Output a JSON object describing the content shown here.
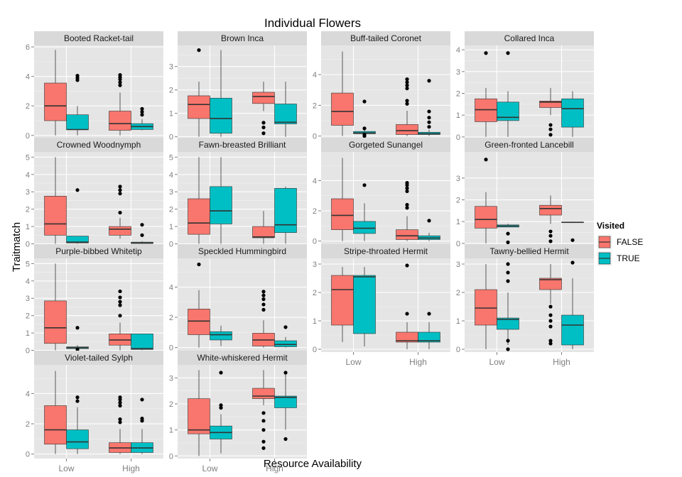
{
  "chart_data": {
    "type": "boxplot",
    "title": "Individual Flowers",
    "xlabel": "Resource Availability",
    "ylabel": "Traitmatch",
    "categories": [
      "Low",
      "High"
    ],
    "legend": {
      "title": "Visited",
      "placement": "right",
      "entries": [
        {
          "label": "FALSE",
          "color": "#F8766D"
        },
        {
          "label": "TRUE",
          "color": "#00BFC4"
        }
      ]
    },
    "grid": true,
    "panels": [
      {
        "name": "Booted Racket-tail",
        "ylim": [
          -0.25,
          6.1
        ],
        "yticks": [
          0,
          2,
          4,
          6
        ],
        "boxes": [
          {
            "x": "Low",
            "group": "FALSE",
            "lw": 0,
            "q1": 1.0,
            "med": 2.0,
            "q3": 3.55,
            "uw": 5.8,
            "out": []
          },
          {
            "x": "Low",
            "group": "TRUE",
            "lw": 0,
            "q1": 0.4,
            "med": 0.4,
            "q3": 1.4,
            "uw": 2.0,
            "out": [
              3.75,
              3.9,
              4.05
            ]
          },
          {
            "x": "High",
            "group": "FALSE",
            "lw": 0,
            "q1": 0.35,
            "med": 0.8,
            "q3": 1.65,
            "uw": 2.9,
            "out": [
              3.4,
              3.6,
              3.8,
              3.95,
              4.1
            ]
          },
          {
            "x": "High",
            "group": "TRUE",
            "lw": 0.35,
            "q1": 0.4,
            "med": 0.6,
            "q3": 0.8,
            "uw": 1.1,
            "out": [
              1.4,
              1.6,
              1.8
            ]
          }
        ]
      },
      {
        "name": "Brown Inca",
        "ylim": [
          -0.1,
          3.9
        ],
        "yticks": [
          0,
          1,
          2,
          3
        ],
        "boxes": [
          {
            "x": "Low",
            "group": "FALSE",
            "lw": 0,
            "q1": 0.78,
            "med": 1.38,
            "q3": 1.75,
            "uw": 2.35,
            "out": [
              3.7
            ]
          },
          {
            "x": "Low",
            "group": "TRUE",
            "lw": 0,
            "q1": 0.15,
            "med": 0.78,
            "q3": 1.65,
            "uw": 3.7,
            "out": []
          },
          {
            "x": "High",
            "group": "FALSE",
            "lw": 1.1,
            "q1": 1.42,
            "med": 1.72,
            "q3": 1.9,
            "uw": 2.35,
            "out": [
              0.15,
              0.4,
              0.6
            ]
          },
          {
            "x": "High",
            "group": "TRUE",
            "lw": 0,
            "q1": 0.55,
            "med": 0.62,
            "q3": 1.4,
            "uw": 2.35,
            "out": []
          }
        ]
      },
      {
        "name": "Buff-tailed Coronet",
        "ylim": [
          -0.2,
          5.9
        ],
        "yticks": [
          0,
          2,
          4
        ],
        "boxes": [
          {
            "x": "Low",
            "group": "FALSE",
            "lw": 0,
            "q1": 0.7,
            "med": 1.6,
            "q3": 2.8,
            "uw": 5.5,
            "out": []
          },
          {
            "x": "Low",
            "group": "TRUE",
            "lw": 0.05,
            "q1": 0.15,
            "med": 0.2,
            "q3": 0.3,
            "uw": 0.4,
            "out": [
              0.0,
              0.1,
              0.5,
              2.25
            ]
          },
          {
            "x": "High",
            "group": "FALSE",
            "lw": 0,
            "q1": 0.1,
            "med": 0.35,
            "q3": 0.75,
            "uw": 1.65,
            "out": [
              2.1,
              2.3,
              3.1,
              3.3,
              3.5,
              3.7
            ]
          },
          {
            "x": "High",
            "group": "TRUE",
            "lw": 0.0,
            "q1": 0.1,
            "med": 0.15,
            "q3": 0.25,
            "uw": 0.4,
            "out": [
              0.6,
              0.9,
              1.2,
              1.6,
              3.6
            ]
          }
        ]
      },
      {
        "name": "Collared Inca",
        "ylim": [
          -0.1,
          4.2
        ],
        "yticks": [
          0,
          1,
          2,
          3,
          4
        ],
        "boxes": [
          {
            "x": "Low",
            "group": "FALSE",
            "lw": 0,
            "q1": 0.7,
            "med": 1.25,
            "q3": 1.75,
            "uw": 2.25,
            "out": [
              3.85
            ]
          },
          {
            "x": "Low",
            "group": "TRUE",
            "lw": 0,
            "q1": 0.75,
            "med": 0.9,
            "q3": 1.6,
            "uw": 2.1,
            "out": [
              3.85
            ]
          },
          {
            "x": "High",
            "group": "FALSE",
            "lw": 1.0,
            "q1": 1.35,
            "med": 1.6,
            "q3": 1.65,
            "uw": 2.25,
            "out": [
              0.1,
              0.35,
              0.55
            ]
          },
          {
            "x": "High",
            "group": "TRUE",
            "lw": 0,
            "q1": 0.45,
            "med": 1.3,
            "q3": 1.75,
            "uw": 2.1,
            "out": []
          }
        ]
      },
      {
        "name": "Crowned Woodnymph",
        "ylim": [
          -0.1,
          5.3
        ],
        "yticks": [
          0,
          1,
          2,
          3,
          4,
          5
        ],
        "boxes": [
          {
            "x": "Low",
            "group": "FALSE",
            "lw": 0,
            "q1": 0.5,
            "med": 1.15,
            "q3": 2.75,
            "uw": 5.0,
            "out": []
          },
          {
            "x": "Low",
            "group": "TRUE",
            "lw": 0,
            "q1": 0.05,
            "med": 0.1,
            "q3": 0.45,
            "uw": 0.45,
            "out": [
              3.1
            ]
          },
          {
            "x": "High",
            "group": "FALSE",
            "lw": 0.3,
            "q1": 0.5,
            "med": 0.85,
            "q3": 1.0,
            "uw": 1.5,
            "out": [
              1.8,
              2.9,
              3.1,
              3.3
            ]
          },
          {
            "x": "High",
            "group": "TRUE",
            "lw": 0,
            "q1": 0.02,
            "med": 0.05,
            "q3": 0.1,
            "uw": 0.15,
            "out": [
              0.5,
              1.1
            ]
          }
        ]
      },
      {
        "name": "Fawn-breasted Brilliant",
        "ylim": [
          -0.1,
          5.3
        ],
        "yticks": [
          0,
          1,
          2,
          3,
          4,
          5
        ],
        "boxes": [
          {
            "x": "Low",
            "group": "FALSE",
            "lw": 0,
            "q1": 0.55,
            "med": 1.2,
            "q3": 2.6,
            "uw": 5.0,
            "out": []
          },
          {
            "x": "Low",
            "group": "TRUE",
            "lw": 0,
            "q1": 1.15,
            "med": 1.9,
            "q3": 3.3,
            "uw": 5.0,
            "out": []
          },
          {
            "x": "High",
            "group": "FALSE",
            "lw": 0,
            "q1": 0.35,
            "med": 0.4,
            "q3": 1.0,
            "uw": 1.9,
            "out": []
          },
          {
            "x": "High",
            "group": "TRUE",
            "lw": 0,
            "q1": 0.65,
            "med": 1.1,
            "q3": 3.2,
            "uw": 3.3,
            "out": []
          }
        ]
      },
      {
        "name": "Gorgeted Sunangel",
        "ylim": [
          -0.3,
          5.9
        ],
        "yticks": [
          0,
          2,
          4
        ],
        "boxes": [
          {
            "x": "Low",
            "group": "FALSE",
            "lw": 0,
            "q1": 0.75,
            "med": 1.7,
            "q3": 2.8,
            "uw": 5.5,
            "out": []
          },
          {
            "x": "Low",
            "group": "TRUE",
            "lw": 0,
            "q1": 0.5,
            "med": 0.85,
            "q3": 1.3,
            "uw": 2.5,
            "out": [
              3.7
            ]
          },
          {
            "x": "High",
            "group": "FALSE",
            "lw": 0,
            "q1": 0.1,
            "med": 0.35,
            "q3": 0.75,
            "uw": 1.65,
            "out": [
              2.2,
              2.4,
              3.3,
              3.5,
              3.7,
              3.85
            ]
          },
          {
            "x": "High",
            "group": "TRUE",
            "lw": 0,
            "q1": 0.1,
            "med": 0.2,
            "q3": 0.35,
            "uw": 0.55,
            "out": [
              1.35
            ]
          }
        ]
      },
      {
        "name": "Green-fronted Lancebill",
        "ylim": [
          -0.1,
          4.2
        ],
        "yticks": [
          0,
          1,
          2,
          3
        ],
        "boxes": [
          {
            "x": "Low",
            "group": "FALSE",
            "lw": 0,
            "q1": 0.7,
            "med": 1.1,
            "q3": 1.7,
            "uw": 2.35,
            "out": [
              3.85
            ]
          },
          {
            "x": "Low",
            "group": "TRUE",
            "lw": 0.75,
            "q1": 0.75,
            "med": 0.8,
            "q3": 0.85,
            "uw": 0.9,
            "out": [
              0.05,
              0.45
            ]
          },
          {
            "x": "High",
            "group": "FALSE",
            "lw": 0.9,
            "q1": 1.3,
            "med": 1.6,
            "q3": 1.75,
            "uw": 2.2,
            "out": [
              0.1,
              0.35,
              0.55
            ]
          },
          {
            "x": "High",
            "group": "TRUE",
            "lw": 0.95,
            "q1": 0.95,
            "med": 0.97,
            "q3": 0.98,
            "uw": 1.0,
            "out": [
              0.15
            ]
          }
        ]
      },
      {
        "name": "Purple-bibbed Whitetip",
        "ylim": [
          -0.1,
          5.3
        ],
        "yticks": [
          0,
          1,
          2,
          3,
          4,
          5
        ],
        "boxes": [
          {
            "x": "Low",
            "group": "FALSE",
            "lw": 0,
            "q1": 0.4,
            "med": 1.3,
            "q3": 2.85,
            "uw": 5.0,
            "out": []
          },
          {
            "x": "Low",
            "group": "TRUE",
            "lw": 0.05,
            "q1": 0.1,
            "med": 0.15,
            "q3": 0.2,
            "uw": 0.3,
            "out": [
              0.05,
              1.3
            ]
          },
          {
            "x": "High",
            "group": "FALSE",
            "lw": 0,
            "q1": 0.3,
            "med": 0.6,
            "q3": 0.95,
            "uw": 1.6,
            "out": [
              2.0,
              2.6,
              2.8,
              3.05,
              3.4
            ]
          },
          {
            "x": "High",
            "group": "TRUE",
            "lw": 0,
            "q1": 0.05,
            "med": 0.1,
            "q3": 0.95,
            "uw": 0.95,
            "out": []
          }
        ]
      },
      {
        "name": "Speckled Hummingbird",
        "ylim": [
          -0.3,
          5.9
        ],
        "yticks": [
          0,
          2,
          4
        ],
        "boxes": [
          {
            "x": "Low",
            "group": "FALSE",
            "lw": 0,
            "q1": 0.85,
            "med": 1.75,
            "q3": 2.55,
            "uw": 3.8,
            "out": [
              5.5
            ]
          },
          {
            "x": "Low",
            "group": "TRUE",
            "lw": 0.1,
            "q1": 0.5,
            "med": 0.85,
            "q3": 1.05,
            "uw": 1.45,
            "out": []
          },
          {
            "x": "High",
            "group": "FALSE",
            "lw": 0,
            "q1": 0.1,
            "med": 0.5,
            "q3": 0.95,
            "uw": 1.8,
            "out": [
              2.5,
              2.85,
              3.2,
              3.45,
              3.7
            ]
          },
          {
            "x": "High",
            "group": "TRUE",
            "lw": 0,
            "q1": 0.05,
            "med": 0.2,
            "q3": 0.45,
            "uw": 0.7,
            "out": [
              1.35
            ]
          }
        ]
      },
      {
        "name": "Stripe-throated Hermit",
        "ylim": [
          -0.1,
          3.2
        ],
        "yticks": [
          0,
          1,
          2,
          3
        ],
        "boxes": [
          {
            "x": "Low",
            "group": "FALSE",
            "lw": 0.25,
            "q1": 0.85,
            "med": 2.1,
            "q3": 2.6,
            "uw": 2.9,
            "out": []
          },
          {
            "x": "Low",
            "group": "TRUE",
            "lw": 0.1,
            "q1": 0.55,
            "med": 2.55,
            "q3": 2.6,
            "uw": 2.9,
            "out": []
          },
          {
            "x": "High",
            "group": "FALSE",
            "lw": 0,
            "q1": 0.25,
            "med": 0.3,
            "q3": 0.6,
            "uw": 0.95,
            "out": [
              1.25,
              2.95
            ]
          },
          {
            "x": "High",
            "group": "TRUE",
            "lw": 0,
            "q1": 0.25,
            "med": 0.3,
            "q3": 0.6,
            "uw": 0.95,
            "out": [
              1.25
            ]
          }
        ]
      },
      {
        "name": "Tawny-bellied Hermit",
        "ylim": [
          -0.1,
          3.2
        ],
        "yticks": [
          0,
          1,
          2,
          3
        ],
        "boxes": [
          {
            "x": "Low",
            "group": "FALSE",
            "lw": 0,
            "q1": 0.85,
            "med": 1.45,
            "q3": 2.1,
            "uw": 3.0,
            "out": []
          },
          {
            "x": "Low",
            "group": "TRUE",
            "lw": 0.15,
            "q1": 0.7,
            "med": 1.05,
            "q3": 1.1,
            "uw": 2.0,
            "out": [
              0.0,
              0.3,
              2.4,
              2.7,
              3.0
            ]
          },
          {
            "x": "High",
            "group": "FALSE",
            "lw": 1.6,
            "q1": 2.1,
            "med": 2.45,
            "q3": 2.5,
            "uw": 3.0,
            "out": [
              0.2,
              0.3,
              0.8,
              1.0,
              1.2,
              1.5
            ]
          },
          {
            "x": "High",
            "group": "TRUE",
            "lw": 0,
            "q1": 0.15,
            "med": 0.85,
            "q3": 1.2,
            "uw": 2.5,
            "out": [
              3.05
            ]
          }
        ]
      },
      {
        "name": "Violet-tailed Sylph",
        "ylim": [
          -0.3,
          5.9
        ],
        "yticks": [
          0,
          2,
          4
        ],
        "boxes": [
          {
            "x": "Low",
            "group": "FALSE",
            "lw": 0,
            "q1": 0.65,
            "med": 1.6,
            "q3": 3.2,
            "uw": 5.5,
            "out": []
          },
          {
            "x": "Low",
            "group": "TRUE",
            "lw": 0,
            "q1": 0.35,
            "med": 0.8,
            "q3": 1.6,
            "uw": 3.1,
            "out": [
              3.5,
              3.75
            ]
          },
          {
            "x": "High",
            "group": "FALSE",
            "lw": 0,
            "q1": 0.1,
            "med": 0.4,
            "q3": 0.75,
            "uw": 1.65,
            "out": [
              2.1,
              2.3,
              3.2,
              3.4,
              3.6,
              3.75
            ]
          },
          {
            "x": "High",
            "group": "TRUE",
            "lw": 0,
            "q1": 0.1,
            "med": 0.4,
            "q3": 0.75,
            "uw": 1.65,
            "out": [
              2.2,
              2.35,
              3.6
            ]
          }
        ]
      },
      {
        "name": "White-whiskered Hermit",
        "ylim": [
          -0.1,
          3.5
        ],
        "yticks": [
          0,
          1,
          2,
          3
        ],
        "boxes": [
          {
            "x": "Low",
            "group": "FALSE",
            "lw": 0,
            "q1": 0.85,
            "med": 1.0,
            "q3": 2.2,
            "uw": 3.3,
            "out": []
          },
          {
            "x": "Low",
            "group": "TRUE",
            "lw": 0.1,
            "q1": 0.65,
            "med": 0.9,
            "q3": 1.15,
            "uw": 1.6,
            "out": [
              1.85,
              1.95,
              3.2
            ]
          },
          {
            "x": "High",
            "group": "FALSE",
            "lw": 1.95,
            "q1": 2.2,
            "med": 2.3,
            "q3": 2.6,
            "uw": 3.3,
            "out": [
              0.3,
              0.55,
              1.0,
              1.35,
              1.65
            ]
          },
          {
            "x": "High",
            "group": "TRUE",
            "lw": 1.0,
            "q1": 1.85,
            "med": 2.25,
            "q3": 2.3,
            "uw": 3.2,
            "out": [
              0.65,
              3.2
            ]
          }
        ]
      }
    ]
  }
}
